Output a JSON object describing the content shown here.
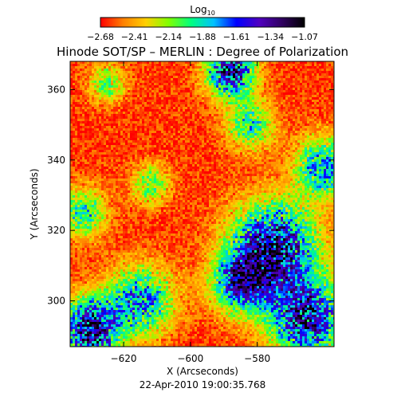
{
  "chart_data": {
    "type": "heatmap",
    "title": "Hinode SOT/SP – MERLIN : Degree of Polarization",
    "xlabel": "X (Arcseconds)",
    "ylabel": "Y (Arcseconds)",
    "footer": "22-Apr-2010 19:00:35.768",
    "xlim": [
      -636,
      -557
    ],
    "ylim": [
      287,
      368
    ],
    "x_ticks": [
      -620,
      -600,
      -580
    ],
    "y_ticks": [
      300,
      320,
      340,
      360
    ],
    "colorbar": {
      "label_base": "Log",
      "label_sub": "10",
      "range": [
        -2.68,
        -1.07
      ],
      "ticks": [
        "−2.68",
        "−2.41",
        "−2.14",
        "−1.88",
        "−1.61",
        "−1.34",
        "−1.07"
      ],
      "colormap": [
        "#ff0000",
        "#ff8000",
        "#ffd000",
        "#80ff00",
        "#00ff80",
        "#00c0ff",
        "#0000ff",
        "#5000c0",
        "#300060",
        "#000000"
      ]
    },
    "map": {
      "background_level": -2.6,
      "variation": 0.12,
      "features": [
        {
          "x": -630,
          "y": 292,
          "peak": -1.3,
          "sigma": 6
        },
        {
          "x": -615,
          "y": 300,
          "peak": -1.75,
          "sigma": 7
        },
        {
          "x": -575,
          "y": 315,
          "peak": -1.35,
          "sigma": 9
        },
        {
          "x": -565,
          "y": 295,
          "peak": -1.45,
          "sigma": 8
        },
        {
          "x": -585,
          "y": 305,
          "peak": -1.65,
          "sigma": 6
        },
        {
          "x": -588,
          "y": 365,
          "peak": -1.35,
          "sigma": 5
        },
        {
          "x": -582,
          "y": 350,
          "peak": -1.95,
          "sigma": 5
        },
        {
          "x": -560,
          "y": 338,
          "peak": -1.75,
          "sigma": 6
        },
        {
          "x": -632,
          "y": 325,
          "peak": -1.95,
          "sigma": 5
        },
        {
          "x": -612,
          "y": 333,
          "peak": -2.05,
          "sigma": 4
        },
        {
          "x": -625,
          "y": 362,
          "peak": -2.1,
          "sigma": 4
        }
      ]
    }
  }
}
